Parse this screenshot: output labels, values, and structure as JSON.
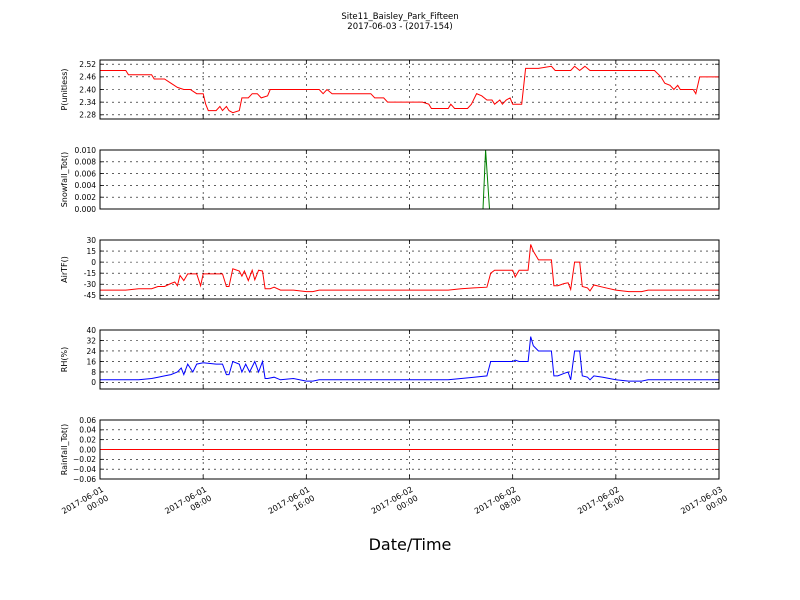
{
  "title": "Site11_Baisley_Park_Fifteen",
  "subtitle": "2017-06-03 - (2017-154)",
  "xlabel": "Date/Time",
  "chart_data": {
    "type": "line",
    "x_ticks": [
      {
        "line1": "2017-06-01",
        "line2": "00:00"
      },
      {
        "line1": "2017-06-01",
        "line2": "08:00"
      },
      {
        "line1": "2017-06-01",
        "line2": "16:00"
      },
      {
        "line1": "2017-06-02",
        "line2": "00:00"
      },
      {
        "line1": "2017-06-02",
        "line2": "08:00"
      },
      {
        "line1": "2017-06-02",
        "line2": "16:00"
      },
      {
        "line1": "2017-06-03",
        "line2": "00:00"
      }
    ],
    "xlim_hours": [
      0,
      48
    ],
    "panels": [
      {
        "ylabel": "P(unitless)",
        "color": "#ff0000",
        "ylim": [
          2.26,
          2.54
        ],
        "yticks": [
          "2.52",
          "2.46",
          "2.40",
          "2.34",
          "2.28"
        ],
        "ytick_values": [
          2.52,
          2.46,
          2.4,
          2.34,
          2.28
        ],
        "points": [
          [
            0,
            2.49
          ],
          [
            1.5,
            2.49
          ],
          [
            2,
            2.49
          ],
          [
            2.2,
            2.47
          ],
          [
            3,
            2.47
          ],
          [
            4,
            2.47
          ],
          [
            4.2,
            2.45
          ],
          [
            5,
            2.45
          ],
          [
            5.5,
            2.43
          ],
          [
            6,
            2.41
          ],
          [
            6.5,
            2.4
          ],
          [
            7,
            2.4
          ],
          [
            7.5,
            2.38
          ],
          [
            8,
            2.38
          ],
          [
            8.2,
            2.33
          ],
          [
            8.4,
            2.3
          ],
          [
            9,
            2.3
          ],
          [
            9.3,
            2.32
          ],
          [
            9.5,
            2.3
          ],
          [
            9.8,
            2.32
          ],
          [
            10,
            2.3
          ],
          [
            10.3,
            2.29
          ],
          [
            10.8,
            2.3
          ],
          [
            11,
            2.36
          ],
          [
            11.5,
            2.36
          ],
          [
            11.8,
            2.38
          ],
          [
            12.2,
            2.38
          ],
          [
            12.5,
            2.36
          ],
          [
            13,
            2.37
          ],
          [
            13.2,
            2.4
          ],
          [
            14,
            2.4
          ],
          [
            15,
            2.4
          ],
          [
            16,
            2.4
          ],
          [
            17,
            2.4
          ],
          [
            17.3,
            2.38
          ],
          [
            17.6,
            2.4
          ],
          [
            18,
            2.38
          ],
          [
            19,
            2.38
          ],
          [
            20,
            2.38
          ],
          [
            21,
            2.38
          ],
          [
            21.3,
            2.36
          ],
          [
            22,
            2.36
          ],
          [
            22.3,
            2.34
          ],
          [
            24,
            2.34
          ],
          [
            25,
            2.34
          ],
          [
            25.5,
            2.33
          ],
          [
            25.7,
            2.31
          ],
          [
            27,
            2.31
          ],
          [
            27.2,
            2.33
          ],
          [
            27.5,
            2.31
          ],
          [
            28.5,
            2.31
          ],
          [
            28.8,
            2.33
          ],
          [
            29.2,
            2.38
          ],
          [
            29.6,
            2.37
          ],
          [
            30,
            2.35
          ],
          [
            30.4,
            2.35
          ],
          [
            30.6,
            2.33
          ],
          [
            30.8,
            2.34
          ],
          [
            31,
            2.35
          ],
          [
            31.2,
            2.33
          ],
          [
            31.5,
            2.35
          ],
          [
            31.8,
            2.36
          ],
          [
            32,
            2.33
          ],
          [
            32.7,
            2.33
          ],
          [
            33,
            2.5
          ],
          [
            34,
            2.5
          ],
          [
            35,
            2.51
          ],
          [
            35.3,
            2.49
          ],
          [
            36,
            2.49
          ],
          [
            36.5,
            2.49
          ],
          [
            36.8,
            2.51
          ],
          [
            37.2,
            2.49
          ],
          [
            37.6,
            2.51
          ],
          [
            38,
            2.49
          ],
          [
            39,
            2.49
          ],
          [
            40,
            2.49
          ],
          [
            41,
            2.49
          ],
          [
            42,
            2.49
          ],
          [
            43,
            2.49
          ],
          [
            43.5,
            2.46
          ],
          [
            43.8,
            2.43
          ],
          [
            44.2,
            2.42
          ],
          [
            44.5,
            2.4
          ],
          [
            44.8,
            2.42
          ],
          [
            45,
            2.4
          ],
          [
            46,
            2.4
          ],
          [
            46.2,
            2.38
          ],
          [
            46.5,
            2.46
          ],
          [
            47,
            2.46
          ],
          [
            48,
            2.46
          ]
        ]
      },
      {
        "ylabel": "Snowfall_Tot()",
        "color": "#008000",
        "ylim": [
          0,
          0.01
        ],
        "yticks": [
          "0.010",
          "0.008",
          "0.006",
          "0.004",
          "0.002",
          "0.000"
        ],
        "ytick_values": [
          0.01,
          0.008,
          0.006,
          0.004,
          0.002,
          0.0
        ],
        "points": [
          [
            0,
            0
          ],
          [
            29.7,
            0
          ],
          [
            29.9,
            0.01
          ],
          [
            30.2,
            0
          ],
          [
            48,
            0
          ]
        ]
      },
      {
        "ylabel": "AirTF()",
        "color": "#ff0000",
        "ylim": [
          -50,
          30
        ],
        "yticks": [
          "30",
          "15",
          "0",
          "-15",
          "-30",
          "-45"
        ],
        "ytick_values": [
          30,
          15,
          0,
          -15,
          -30,
          -45
        ],
        "points": [
          [
            0,
            -38
          ],
          [
            2,
            -38
          ],
          [
            3,
            -36
          ],
          [
            4,
            -36
          ],
          [
            4.5,
            -33
          ],
          [
            5,
            -33
          ],
          [
            5.5,
            -29
          ],
          [
            5.8,
            -27
          ],
          [
            6,
            -32
          ],
          [
            6.2,
            -18
          ],
          [
            6.5,
            -25
          ],
          [
            6.8,
            -16
          ],
          [
            7.5,
            -16
          ],
          [
            7.8,
            -32
          ],
          [
            8,
            -16
          ],
          [
            9,
            -16
          ],
          [
            9.5,
            -16
          ],
          [
            9.8,
            -33
          ],
          [
            10,
            -33
          ],
          [
            10.3,
            -9
          ],
          [
            10.8,
            -12
          ],
          [
            11,
            -19
          ],
          [
            11.2,
            -12
          ],
          [
            11.5,
            -25
          ],
          [
            11.8,
            -11
          ],
          [
            12,
            -24
          ],
          [
            12.3,
            -11
          ],
          [
            12.6,
            -12
          ],
          [
            12.8,
            -36
          ],
          [
            13.2,
            -36
          ],
          [
            13.5,
            -34
          ],
          [
            14,
            -38
          ],
          [
            15,
            -38
          ],
          [
            16,
            -40
          ],
          [
            16.5,
            -40
          ],
          [
            17,
            -38
          ],
          [
            18,
            -38
          ],
          [
            20,
            -38
          ],
          [
            22,
            -38
          ],
          [
            24,
            -38
          ],
          [
            26,
            -38
          ],
          [
            27,
            -38
          ],
          [
            28,
            -36
          ],
          [
            29,
            -35
          ],
          [
            30,
            -34
          ],
          [
            30.3,
            -15
          ],
          [
            30.6,
            -11
          ],
          [
            32,
            -11
          ],
          [
            32.2,
            -20
          ],
          [
            32.5,
            -11
          ],
          [
            33.2,
            -11
          ],
          [
            33.4,
            24
          ],
          [
            33.6,
            15
          ],
          [
            34,
            3
          ],
          [
            34.5,
            3
          ],
          [
            35,
            3
          ],
          [
            35.2,
            -32
          ],
          [
            35.5,
            -32
          ],
          [
            36,
            -29
          ],
          [
            36.3,
            -28
          ],
          [
            36.5,
            -37
          ],
          [
            36.8,
            0
          ],
          [
            37.2,
            0
          ],
          [
            37.4,
            -33
          ],
          [
            37.8,
            -35
          ],
          [
            38,
            -39
          ],
          [
            38.3,
            -31
          ],
          [
            39,
            -34
          ],
          [
            40,
            -38
          ],
          [
            41,
            -40
          ],
          [
            42,
            -40
          ],
          [
            42.5,
            -38
          ],
          [
            44,
            -38
          ],
          [
            46,
            -38
          ],
          [
            48,
            -38
          ]
        ]
      },
      {
        "ylabel": "RH(%)",
        "color": "#0000ff",
        "ylim": [
          -5,
          40
        ],
        "yticks": [
          "40",
          "32",
          "24",
          "16",
          "8",
          "0"
        ],
        "ytick_values": [
          40,
          32,
          24,
          16,
          8,
          0
        ],
        "points": [
          [
            0,
            2
          ],
          [
            2,
            2
          ],
          [
            3,
            2
          ],
          [
            4,
            3
          ],
          [
            4.5,
            4
          ],
          [
            5,
            5
          ],
          [
            5.5,
            6
          ],
          [
            6,
            8
          ],
          [
            6.3,
            11
          ],
          [
            6.5,
            6
          ],
          [
            6.8,
            14
          ],
          [
            7.2,
            8
          ],
          [
            7.5,
            14
          ],
          [
            8,
            15
          ],
          [
            9,
            14
          ],
          [
            9.5,
            14
          ],
          [
            9.8,
            6
          ],
          [
            10,
            6
          ],
          [
            10.3,
            16
          ],
          [
            10.8,
            14
          ],
          [
            11,
            8
          ],
          [
            11.3,
            14
          ],
          [
            11.6,
            8
          ],
          [
            12,
            16
          ],
          [
            12.3,
            8
          ],
          [
            12.6,
            16
          ],
          [
            12.8,
            3
          ],
          [
            13,
            3
          ],
          [
            13.5,
            4
          ],
          [
            14,
            2
          ],
          [
            15,
            3
          ],
          [
            16,
            1
          ],
          [
            16.5,
            1
          ],
          [
            17,
            2
          ],
          [
            18,
            2
          ],
          [
            20,
            2
          ],
          [
            22,
            2
          ],
          [
            24,
            2
          ],
          [
            26,
            2
          ],
          [
            27,
            2
          ],
          [
            28,
            3
          ],
          [
            29,
            4
          ],
          [
            30,
            5
          ],
          [
            30.3,
            16
          ],
          [
            31,
            16
          ],
          [
            32,
            16
          ],
          [
            32.2,
            17
          ],
          [
            32.5,
            16
          ],
          [
            33.2,
            16
          ],
          [
            33.4,
            35
          ],
          [
            33.6,
            28
          ],
          [
            34,
            24
          ],
          [
            35,
            24
          ],
          [
            35.2,
            5
          ],
          [
            35.5,
            5
          ],
          [
            36,
            7
          ],
          [
            36.3,
            8
          ],
          [
            36.5,
            2
          ],
          [
            36.8,
            24
          ],
          [
            37.2,
            24
          ],
          [
            37.4,
            5
          ],
          [
            37.8,
            4
          ],
          [
            38,
            2
          ],
          [
            38.3,
            5
          ],
          [
            39,
            4
          ],
          [
            40,
            2
          ],
          [
            41,
            1
          ],
          [
            42,
            1
          ],
          [
            42.5,
            2
          ],
          [
            44,
            2
          ],
          [
            46,
            2
          ],
          [
            48,
            2
          ]
        ]
      },
      {
        "ylabel": "Rainfall_Tot()",
        "color": "#ff0000",
        "ylim": [
          -0.06,
          0.06
        ],
        "yticks": [
          "0.06",
          "0.04",
          "0.02",
          "0.00",
          "−0.02",
          "−0.04",
          "−0.06"
        ],
        "ytick_values": [
          0.06,
          0.04,
          0.02,
          0.0,
          -0.02,
          -0.04,
          -0.06
        ],
        "points": [
          [
            0,
            0
          ],
          [
            48,
            0
          ]
        ]
      }
    ]
  }
}
